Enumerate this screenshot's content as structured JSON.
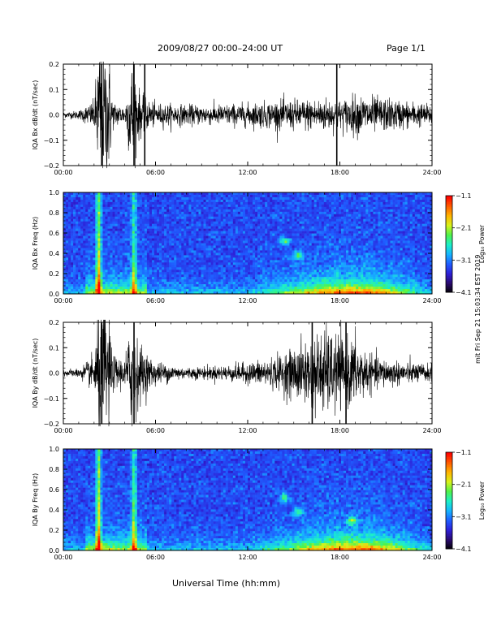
{
  "header": {
    "title": "2009/08/27  00:00–24:00 UT",
    "page": "Page 1/1"
  },
  "x_axis": {
    "label": "Universal Time (hh:mm)",
    "ticks": [
      "00:00",
      "06:00",
      "12:00",
      "18:00",
      "24:00"
    ]
  },
  "side_note": "mit Fri Sep 21 15:03:34 EST 2019",
  "colors": {
    "trace": "#000000",
    "colormap": [
      "#000000",
      "#2a0a6e",
      "#2e1fd6",
      "#1f5cff",
      "#16b4ff",
      "#1cf0c8",
      "#4ff24b",
      "#d8f21b",
      "#ffb400",
      "#ff5a00",
      "#ff0000"
    ]
  },
  "chart_data": [
    {
      "type": "line",
      "ylabel": "IQA Bx dB/dt (nT/sec)",
      "ylim": [
        -0.2,
        0.2
      ],
      "yticks": [
        "0.2",
        "0.1",
        "0.0",
        "−0.1",
        "−0.2"
      ],
      "xlim_hours": [
        0,
        24
      ],
      "envelope": {
        "hours": [
          0,
          1,
          2,
          2.3,
          2.6,
          3.0,
          3.2,
          4,
          4.6,
          4.8,
          5.2,
          6,
          8,
          10,
          12,
          14,
          16,
          17,
          18,
          19,
          20,
          22,
          24
        ],
        "amplitude": [
          0.01,
          0.015,
          0.05,
          0.25,
          0.25,
          0.2,
          0.05,
          0.03,
          0.25,
          0.1,
          0.06,
          0.04,
          0.035,
          0.035,
          0.04,
          0.05,
          0.055,
          0.06,
          0.05,
          0.07,
          0.065,
          0.05,
          0.035
        ]
      },
      "spikes_hours": [
        2.5,
        4.6,
        5.3,
        17.8
      ]
    },
    {
      "type": "heatmap",
      "ylabel": "IQA Bx Freq (Hz)",
      "ylim": [
        0.0,
        1.0
      ],
      "yticks": [
        "1.0",
        "0.8",
        "0.6",
        "0.4",
        "0.2",
        "0.0"
      ],
      "xlim_hours": [
        0,
        24
      ],
      "colorbar": {
        "label": "Log₁₀ Power",
        "ticks": [
          "−1.1",
          "−2.1",
          "−3.1",
          "−4.1"
        ],
        "range": [
          -4.1,
          -1.1
        ]
      },
      "features": [
        {
          "kind": "vertical-band",
          "hours": 2.3,
          "strength": 0.95
        },
        {
          "kind": "vertical-band",
          "hours": 4.6,
          "strength": 0.7
        },
        {
          "kind": "blob",
          "hours": 14.4,
          "freq": 0.52
        },
        {
          "kind": "blob",
          "hours": 15.3,
          "freq": 0.38
        }
      ]
    },
    {
      "type": "line",
      "ylabel": "IQA By dB/dt (nT/sec)",
      "ylim": [
        -0.2,
        0.2
      ],
      "yticks": [
        "0.2",
        "0.1",
        "0.0",
        "−0.1",
        "−0.2"
      ],
      "xlim_hours": [
        0,
        24
      ],
      "envelope": {
        "hours": [
          0,
          1,
          2,
          2.3,
          2.6,
          3.0,
          3.2,
          4,
          4.6,
          4.8,
          5.2,
          6,
          8,
          10,
          12,
          14,
          16,
          17,
          18,
          19,
          20,
          22,
          24
        ],
        "amplitude": [
          0.012,
          0.015,
          0.06,
          0.25,
          0.25,
          0.2,
          0.06,
          0.05,
          0.25,
          0.12,
          0.08,
          0.04,
          0.02,
          0.025,
          0.035,
          0.06,
          0.12,
          0.15,
          0.13,
          0.12,
          0.06,
          0.04,
          0.03
        ]
      },
      "spikes_hours": [
        2.5,
        4.6,
        16.2,
        18.4
      ]
    },
    {
      "type": "heatmap",
      "ylabel": "IQA By Freq (Hz)",
      "ylim": [
        0.0,
        1.0
      ],
      "yticks": [
        "1.0",
        "0.8",
        "0.6",
        "0.4",
        "0.2",
        "0.0"
      ],
      "xlim_hours": [
        0,
        24
      ],
      "colorbar": {
        "label": "Log₁₀ Power",
        "ticks": [
          "−1.1",
          "−2.1",
          "−3.1",
          "−4.1"
        ],
        "range": [
          -4.1,
          -1.1
        ]
      },
      "features": [
        {
          "kind": "vertical-band",
          "hours": 2.3,
          "strength": 0.95
        },
        {
          "kind": "vertical-band",
          "hours": 4.6,
          "strength": 0.75
        },
        {
          "kind": "blob",
          "hours": 14.4,
          "freq": 0.52
        },
        {
          "kind": "blob",
          "hours": 15.3,
          "freq": 0.38
        },
        {
          "kind": "blob",
          "hours": 18.8,
          "freq": 0.3
        }
      ]
    }
  ]
}
